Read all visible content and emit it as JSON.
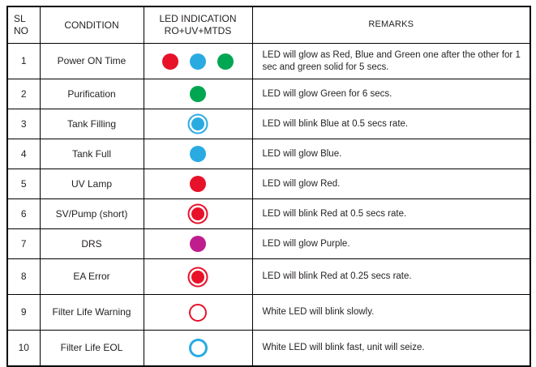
{
  "table": {
    "headers": {
      "sl_line1": "SL",
      "sl_line2": "NO",
      "condition": "CONDITION",
      "led_line1": "LED INDICATION",
      "led_line2": "RO+UV+MTDS",
      "remarks": "REMARKS"
    },
    "colors": {
      "red": "#e8112a",
      "blue": "#29abe2",
      "green": "#00a651",
      "purple": "#bf1d8d"
    },
    "rows": [
      {
        "sl": "1",
        "condition": "Power ON Time",
        "leds": [
          {
            "style": "solid",
            "color": "#e8112a",
            "name": "red-led-solid"
          },
          {
            "style": "solid",
            "color": "#29abe2",
            "name": "blue-led-solid"
          },
          {
            "style": "solid",
            "color": "#00a651",
            "name": "green-led-solid"
          }
        ],
        "remarks": "LED will glow as Red, Blue and Green one after the other for 1 sec and green solid for 5 secs.",
        "tall": true
      },
      {
        "sl": "2",
        "condition": "Purification",
        "leds": [
          {
            "style": "solid",
            "color": "#00a651",
            "name": "green-led-solid"
          }
        ],
        "remarks": "LED will glow Green for 6 secs.",
        "tall": false
      },
      {
        "sl": "3",
        "condition": "Tank Filling",
        "leds": [
          {
            "style": "blink",
            "color": "#29abe2",
            "name": "blue-led-blinking"
          }
        ],
        "remarks": "LED will blink Blue at 0.5 secs rate.",
        "tall": false
      },
      {
        "sl": "4",
        "condition": "Tank Full",
        "leds": [
          {
            "style": "solid",
            "color": "#29abe2",
            "name": "blue-led-solid"
          }
        ],
        "remarks": "LED will glow Blue.",
        "tall": false
      },
      {
        "sl": "5",
        "condition": "UV Lamp",
        "leds": [
          {
            "style": "solid",
            "color": "#e8112a",
            "name": "red-led-solid"
          }
        ],
        "remarks": "LED will glow Red.",
        "tall": false
      },
      {
        "sl": "6",
        "condition": "SV/Pump (short)",
        "leds": [
          {
            "style": "blink",
            "color": "#e8112a",
            "name": "red-led-blinking"
          }
        ],
        "remarks": "LED will blink Red at 0.5 secs rate.",
        "tall": false
      },
      {
        "sl": "7",
        "condition": "DRS",
        "leds": [
          {
            "style": "solid",
            "color": "#bf1d8d",
            "name": "purple-led-solid"
          }
        ],
        "remarks": "LED will glow Purple.",
        "tall": false
      },
      {
        "sl": "8",
        "condition": "EA Error",
        "leds": [
          {
            "style": "blink",
            "color": "#e8112a",
            "name": "red-led-blinking"
          }
        ],
        "remarks": "LED will blink Red at 0.25 secs rate.",
        "tall": true
      },
      {
        "sl": "9",
        "condition": "Filter Life Warning",
        "leds": [
          {
            "style": "hollow",
            "color": "#e8112a",
            "name": "white-led-outline-red"
          }
        ],
        "remarks": "White LED will blink slowly.",
        "tall": true
      },
      {
        "sl": "10",
        "condition": "Filter Life EOL",
        "leds": [
          {
            "style": "hollow-thick",
            "color": "#29abe2",
            "name": "white-led-outline-blue"
          }
        ],
        "remarks": "White LED will blink fast, unit will seize.",
        "tall": true
      }
    ]
  }
}
